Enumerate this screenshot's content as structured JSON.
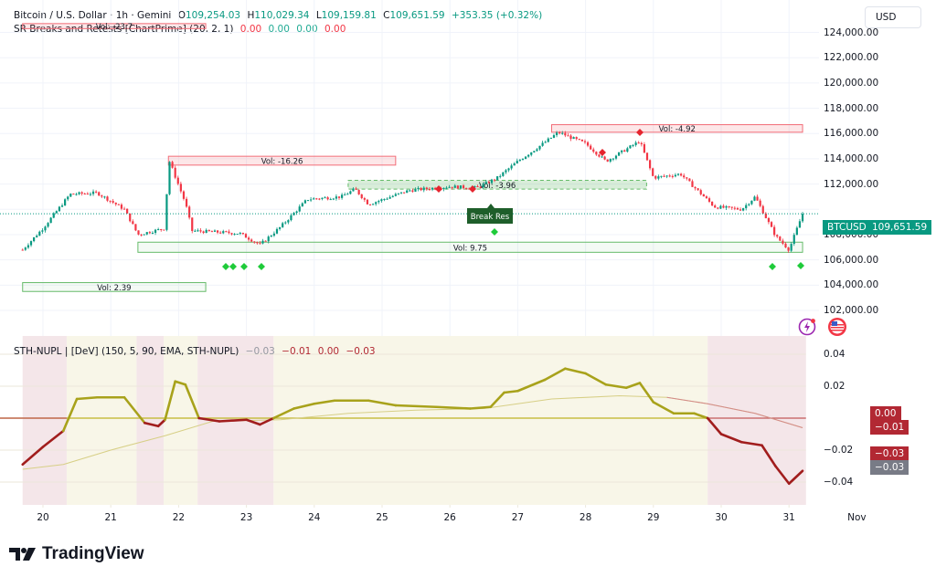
{
  "header": {
    "symbol": "Bitcoin / U.S. Dollar · 1h · Gemini",
    "open_label": "O",
    "open": "109,254.03",
    "high_label": "H",
    "high": "110,029.34",
    "low_label": "L",
    "low": "109,159.81",
    "close_label": "C",
    "close": "109,651.59",
    "change": "+353.35 (+0.32%)"
  },
  "indicator1": {
    "name": "SR Breaks and Retests [ChartPrime] (20, 2, 1)",
    "values": [
      "0.00",
      "0.00",
      "0.00",
      "0.00"
    ],
    "value_colors": [
      "#f23645",
      "#22ab94",
      "#22ab94",
      "#f23645"
    ]
  },
  "indicator2": {
    "name": "STH-NUPL | [DeV] (150, 5, 90, EMA, STH-NUPL)",
    "values": [
      "−0.03",
      "−0.01",
      "0.00",
      "−0.03"
    ]
  },
  "price_axis": {
    "currency": "USD",
    "ticks": [
      "124,000.00",
      "122,000.00",
      "120,000.00",
      "118,000.00",
      "116,000.00",
      "114,000.00",
      "112,000.00",
      "110,000.00",
      "108,000.00",
      "106,000.00",
      "104,000.00",
      "102,000.00"
    ],
    "symbol_tag": "BTCUSD",
    "last_price_tag": "109,651.59"
  },
  "nupl_axis": {
    "ticks": [
      "0.04",
      "0.02",
      "0.00",
      "−0.02",
      "−0.04"
    ],
    "tags": [
      {
        "label": "0.00",
        "color": "#b22833"
      },
      {
        "label": "−0.01",
        "color": "#b22833"
      },
      {
        "label": "−0.03",
        "color": "#b22833"
      },
      {
        "label": "−0.03",
        "color": "#787b86"
      }
    ]
  },
  "time_axis": {
    "ticks": [
      "20",
      "21",
      "22",
      "23",
      "24",
      "25",
      "26",
      "27",
      "28",
      "29",
      "30",
      "31",
      "Nov"
    ]
  },
  "annotations": {
    "vol_zones": [
      {
        "label": "Vol: -23.7",
        "type": "resistance"
      },
      {
        "label": "Vol: -16.26",
        "type": "resistance"
      },
      {
        "label": "Vol: -3.96",
        "type": "support-dashed"
      },
      {
        "label": "Vol: -4.92",
        "type": "resistance"
      },
      {
        "label": "Vol: 9.75",
        "type": "support"
      },
      {
        "label": "Vol: 2.39",
        "type": "support"
      }
    ],
    "break_label": "Break Res"
  },
  "branding": {
    "logo_text": "TradingView"
  },
  "colors": {
    "up": "#089981",
    "down": "#f23645",
    "signal_green": "#22c55e",
    "nupl_positive": "#a8a21b",
    "nupl_negative": "#a11d1d",
    "zone_pos_bg": "#f8f6e8",
    "zone_neg_bg": "#f4e6e9"
  },
  "chart_data": [
    {
      "type": "candlestick",
      "title": "Bitcoin / U.S. Dollar · 1h · Gemini",
      "ylabel": "USD",
      "ylim": [
        101000,
        125000
      ],
      "x_labels": [
        "20",
        "21",
        "22",
        "23",
        "24",
        "25",
        "26",
        "27",
        "28",
        "29",
        "30",
        "31",
        "Nov"
      ],
      "approx_close_path": [
        {
          "day": 19.7,
          "price": 106800
        },
        {
          "day": 20.0,
          "price": 108500
        },
        {
          "day": 20.4,
          "price": 111200
        },
        {
          "day": 20.8,
          "price": 111300
        },
        {
          "day": 21.2,
          "price": 110000
        },
        {
          "day": 21.4,
          "price": 108000
        },
        {
          "day": 21.8,
          "price": 108500
        },
        {
          "day": 21.85,
          "price": 114000
        },
        {
          "day": 22.1,
          "price": 110500
        },
        {
          "day": 22.2,
          "price": 108300
        },
        {
          "day": 22.9,
          "price": 108100
        },
        {
          "day": 23.2,
          "price": 107200
        },
        {
          "day": 23.5,
          "price": 108600
        },
        {
          "day": 23.9,
          "price": 110800
        },
        {
          "day": 24.4,
          "price": 111000
        },
        {
          "day": 24.6,
          "price": 111600
        },
        {
          "day": 24.8,
          "price": 110400
        },
        {
          "day": 25.4,
          "price": 111500
        },
        {
          "day": 26.0,
          "price": 111800
        },
        {
          "day": 26.4,
          "price": 111700
        },
        {
          "day": 26.7,
          "price": 112500
        },
        {
          "day": 27.0,
          "price": 113800
        },
        {
          "day": 27.4,
          "price": 115300
        },
        {
          "day": 27.6,
          "price": 116100
        },
        {
          "day": 28.0,
          "price": 115200
        },
        {
          "day": 28.3,
          "price": 113800
        },
        {
          "day": 28.8,
          "price": 115400
        },
        {
          "day": 29.0,
          "price": 112500
        },
        {
          "day": 29.4,
          "price": 112800
        },
        {
          "day": 29.9,
          "price": 110200
        },
        {
          "day": 30.3,
          "price": 110000
        },
        {
          "day": 30.5,
          "price": 111000
        },
        {
          "day": 30.8,
          "price": 107900
        },
        {
          "day": 31.0,
          "price": 106800
        },
        {
          "day": 31.2,
          "price": 109650
        }
      ],
      "zones": [
        {
          "label": "Vol: -23.7",
          "low": 124300,
          "high": 124700,
          "from_day": 19.7,
          "to_day": 22.4
        },
        {
          "label": "Vol: -16.26",
          "low": 113500,
          "high": 114200,
          "from_day": 21.85,
          "to_day": 25.2
        },
        {
          "label": "Vol: -3.96",
          "low": 111600,
          "high": 112300,
          "from_day": 24.5,
          "to_day": 28.9
        },
        {
          "label": "Vol: -4.92",
          "low": 116100,
          "high": 116700,
          "from_day": 27.5,
          "to_day": 31.2
        },
        {
          "label": "Vol: 9.75",
          "low": 106600,
          "high": 107400,
          "from_day": 21.4,
          "to_day": 31.2
        },
        {
          "label": "Vol: 2.39",
          "low": 103500,
          "high": 104200,
          "from_day": 19.7,
          "to_day": 22.4
        }
      ],
      "last_price": 109651.59
    },
    {
      "type": "line",
      "title": "STH-NUPL | [DeV] (150, 5, 90, EMA, STH-NUPL)",
      "ylim": [
        -0.05,
        0.045
      ],
      "series": [
        {
          "name": "STH-NUPL",
          "points": [
            {
              "day": 19.7,
              "v": -0.029
            },
            {
              "day": 20.0,
              "v": -0.018
            },
            {
              "day": 20.3,
              "v": -0.008
            },
            {
              "day": 20.5,
              "v": 0.012
            },
            {
              "day": 20.8,
              "v": 0.013
            },
            {
              "day": 21.2,
              "v": 0.013
            },
            {
              "day": 21.5,
              "v": -0.003
            },
            {
              "day": 21.7,
              "v": -0.005
            },
            {
              "day": 21.8,
              "v": -0.001
            },
            {
              "day": 21.95,
              "v": 0.023
            },
            {
              "day": 22.1,
              "v": 0.021
            },
            {
              "day": 22.3,
              "v": 0.0
            },
            {
              "day": 22.6,
              "v": -0.002
            },
            {
              "day": 23.0,
              "v": -0.001
            },
            {
              "day": 23.2,
              "v": -0.004
            },
            {
              "day": 23.4,
              "v": 0.0
            },
            {
              "day": 23.7,
              "v": 0.006
            },
            {
              "day": 24.0,
              "v": 0.009
            },
            {
              "day": 24.3,
              "v": 0.011
            },
            {
              "day": 24.8,
              "v": 0.011
            },
            {
              "day": 25.2,
              "v": 0.008
            },
            {
              "day": 25.8,
              "v": 0.007
            },
            {
              "day": 26.3,
              "v": 0.006
            },
            {
              "day": 26.6,
              "v": 0.007
            },
            {
              "day": 26.8,
              "v": 0.016
            },
            {
              "day": 27.0,
              "v": 0.017
            },
            {
              "day": 27.4,
              "v": 0.024
            },
            {
              "day": 27.7,
              "v": 0.031
            },
            {
              "day": 28.0,
              "v": 0.028
            },
            {
              "day": 28.3,
              "v": 0.021
            },
            {
              "day": 28.6,
              "v": 0.019
            },
            {
              "day": 28.8,
              "v": 0.022
            },
            {
              "day": 29.0,
              "v": 0.01
            },
            {
              "day": 29.3,
              "v": 0.003
            },
            {
              "day": 29.6,
              "v": 0.003
            },
            {
              "day": 29.8,
              "v": 0.0
            },
            {
              "day": 30.0,
              "v": -0.01
            },
            {
              "day": 30.3,
              "v": -0.015
            },
            {
              "day": 30.6,
              "v": -0.017
            },
            {
              "day": 30.8,
              "v": -0.03
            },
            {
              "day": 31.0,
              "v": -0.041
            },
            {
              "day": 31.2,
              "v": -0.033
            }
          ]
        },
        {
          "name": "EMA",
          "points": [
            {
              "day": 19.7,
              "v": -0.032
            },
            {
              "day": 20.3,
              "v": -0.029
            },
            {
              "day": 21.0,
              "v": -0.02
            },
            {
              "day": 21.8,
              "v": -0.011
            },
            {
              "day": 22.5,
              "v": -0.002
            },
            {
              "day": 23.5,
              "v": -0.001
            },
            {
              "day": 24.5,
              "v": 0.003
            },
            {
              "day": 25.5,
              "v": 0.005
            },
            {
              "day": 26.5,
              "v": 0.006
            },
            {
              "day": 27.5,
              "v": 0.012
            },
            {
              "day": 28.5,
              "v": 0.014
            },
            {
              "day": 29.2,
              "v": 0.013
            },
            {
              "day": 29.8,
              "v": 0.009
            },
            {
              "day": 30.5,
              "v": 0.003
            },
            {
              "day": 31.2,
              "v": -0.006
            }
          ]
        }
      ],
      "zero_line": 0.0
    }
  ]
}
